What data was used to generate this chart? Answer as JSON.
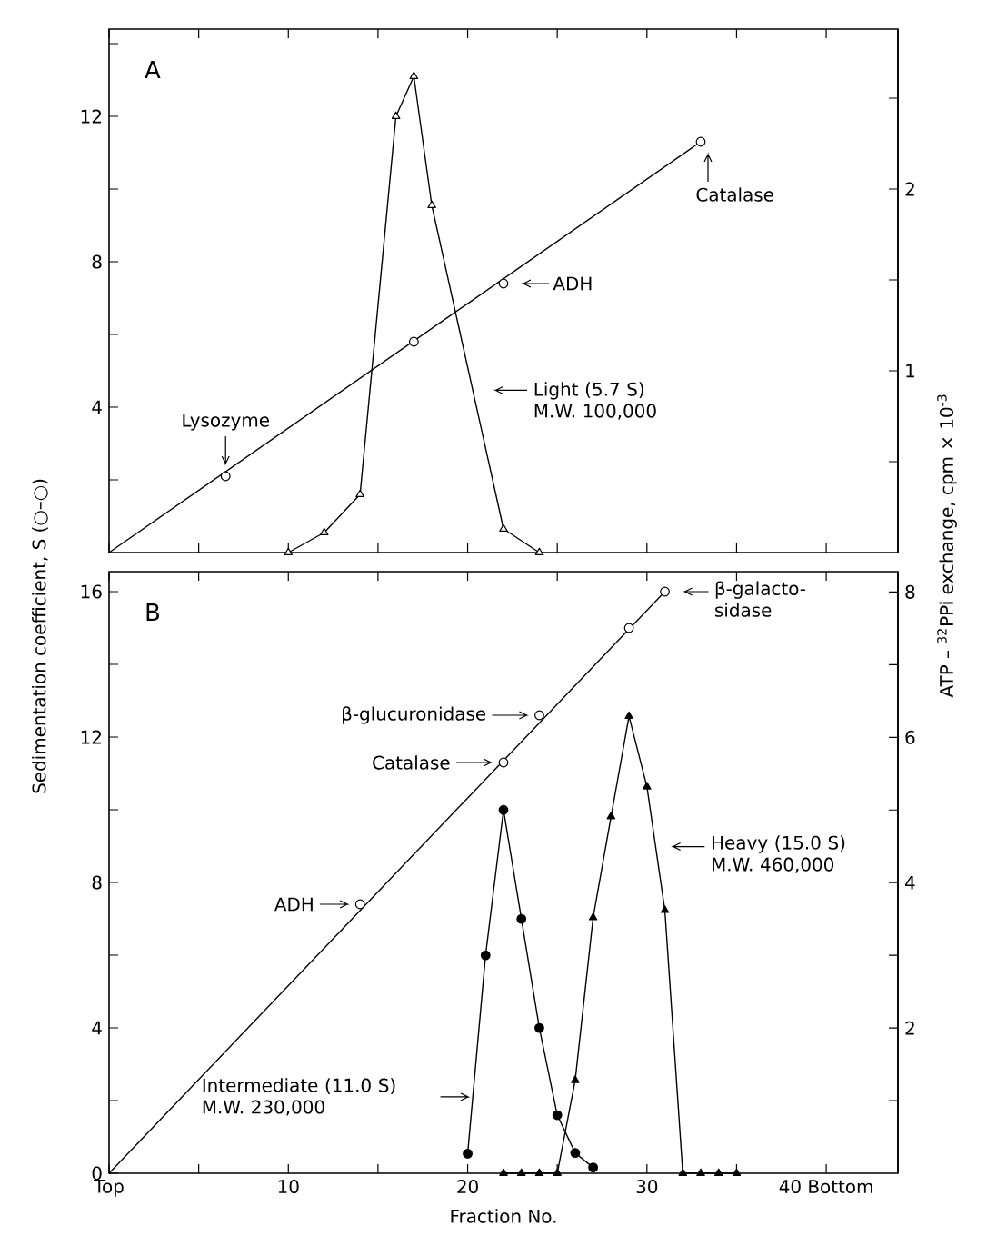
{
  "chart_data": [
    {
      "type": "line",
      "ylabel": "Sedimentation coefficient, S (○–○)",
      "y2label": "ATP – $^{32}$PPi exchange, cpm × 10$^{-3}$",
      "tick_labels": "y",
      "xlim": [
        0,
        44
      ],
      "xticks": [
        0,
        5,
        10,
        15,
        20,
        25,
        30,
        35,
        40
      ],
      "ylim": [
        0,
        14.4
      ],
      "yticks": [
        {
          "value": 2,
          "label": null
        },
        4,
        {
          "value": 6,
          "label": null
        },
        8,
        {
          "value": 10,
          "label": null
        },
        12,
        {
          "value": 14,
          "label": null
        }
      ],
      "y2lim": [
        0,
        2.88
      ],
      "y2ticks": [
        {
          "value": 0.5,
          "label": null
        },
        1,
        {
          "value": 1.5,
          "label": null
        },
        2,
        {
          "value": 2.5,
          "label": null
        }
      ],
      "series": [
        {
          "color": "#000000",
          "marker": "none",
          "x": [
            0,
            33
          ],
          "values": [
            0,
            11.3
          ]
        },
        {
          "type": "scatter",
          "color": "#000000",
          "marker": "circle",
          "x": [
            6.5,
            17,
            22,
            33
          ],
          "values": [
            2.1,
            5.8,
            7.4,
            11.3
          ]
        },
        {
          "axis": "y2",
          "color": "#000000",
          "marker": "triangle",
          "x": [
            10,
            12,
            14,
            16,
            17,
            18,
            22,
            24
          ],
          "values": [
            0,
            0.11,
            0.32,
            2.4,
            2.62,
            1.91,
            0.13,
            0
          ]
        }
      ],
      "annotations": [
        "A",
        {
          "text": "Lysozyme",
          "x": 6.5,
          "y": 2.1
        },
        {
          "text": "ADH",
          "x": 22,
          "y": 7.4
        },
        {
          "text": "Catalase",
          "x": 33,
          "y": 11.3
        },
        "Light (5.7 S) M.W. 100,000"
      ]
    },
    {
      "type": "line",
      "xlabel": "Fraction No.",
      "xlim": [
        0,
        44
      ],
      "xticks": [
        {
          "value": 0,
          "label": "Top"
        },
        {
          "value": 5,
          "label": null
        },
        10,
        {
          "value": 15,
          "label": null
        },
        20,
        {
          "value": 25,
          "label": null
        },
        30,
        {
          "value": 35,
          "label": null
        },
        {
          "value": 40,
          "label": "40 Bottom"
        }
      ],
      "ylim": [
        0,
        16.55
      ],
      "yticks": [
        0,
        {
          "value": 2,
          "label": null
        },
        4,
        {
          "value": 6,
          "label": null
        },
        8,
        {
          "value": 10,
          "label": null
        },
        12,
        {
          "value": 14,
          "label": null
        },
        16
      ],
      "y2lim": [
        0,
        8.28
      ],
      "y2ticks": [
        {
          "value": 1,
          "label": null
        },
        2,
        {
          "value": 3,
          "label": null
        },
        4,
        {
          "value": 5,
          "label": null
        },
        6,
        {
          "value": 7,
          "label": null
        },
        8
      ],
      "series": [
        {
          "color": "#000000",
          "marker": "none",
          "x": [
            0,
            31
          ],
          "values": [
            0,
            16
          ]
        },
        {
          "type": "scatter",
          "color": "#000000",
          "marker": "circle",
          "x": [
            14,
            22,
            24,
            29,
            31
          ],
          "values": [
            7.4,
            11.3,
            12.6,
            15.0,
            16.0
          ]
        },
        {
          "axis": "y2",
          "color": "#000000",
          "marker": "circle",
          "x": [
            20,
            21,
            22,
            23,
            24,
            25,
            26,
            27
          ],
          "values": [
            0.27,
            3.0,
            5.0,
            3.5,
            2.0,
            0.8,
            0.28,
            0.08
          ]
        },
        {
          "axis": "y2",
          "color": "#000000",
          "marker": "triangle",
          "x": [
            22,
            23,
            24,
            25,
            26,
            27,
            28,
            29,
            30,
            31,
            32,
            33,
            34,
            35
          ],
          "values": [
            0,
            0,
            0,
            0,
            1.28,
            3.52,
            4.91,
            6.29,
            5.32,
            3.62,
            0,
            0,
            0,
            0
          ]
        }
      ],
      "annotations": [
        "B",
        {
          "text": "β-galacto-sidase",
          "x": 31,
          "y": 16
        },
        {
          "text": "β-glucuronidase",
          "x": 24,
          "y": 12.6
        },
        {
          "text": "Catalase",
          "x": 22,
          "y": 11.3
        },
        {
          "text": "ADH",
          "x": 14,
          "y": 7.4
        },
        "Heavy (15.0 S) M.W. 460,000",
        "Intermediate (11.0 S) M.W. 230,000"
      ]
    }
  ]
}
